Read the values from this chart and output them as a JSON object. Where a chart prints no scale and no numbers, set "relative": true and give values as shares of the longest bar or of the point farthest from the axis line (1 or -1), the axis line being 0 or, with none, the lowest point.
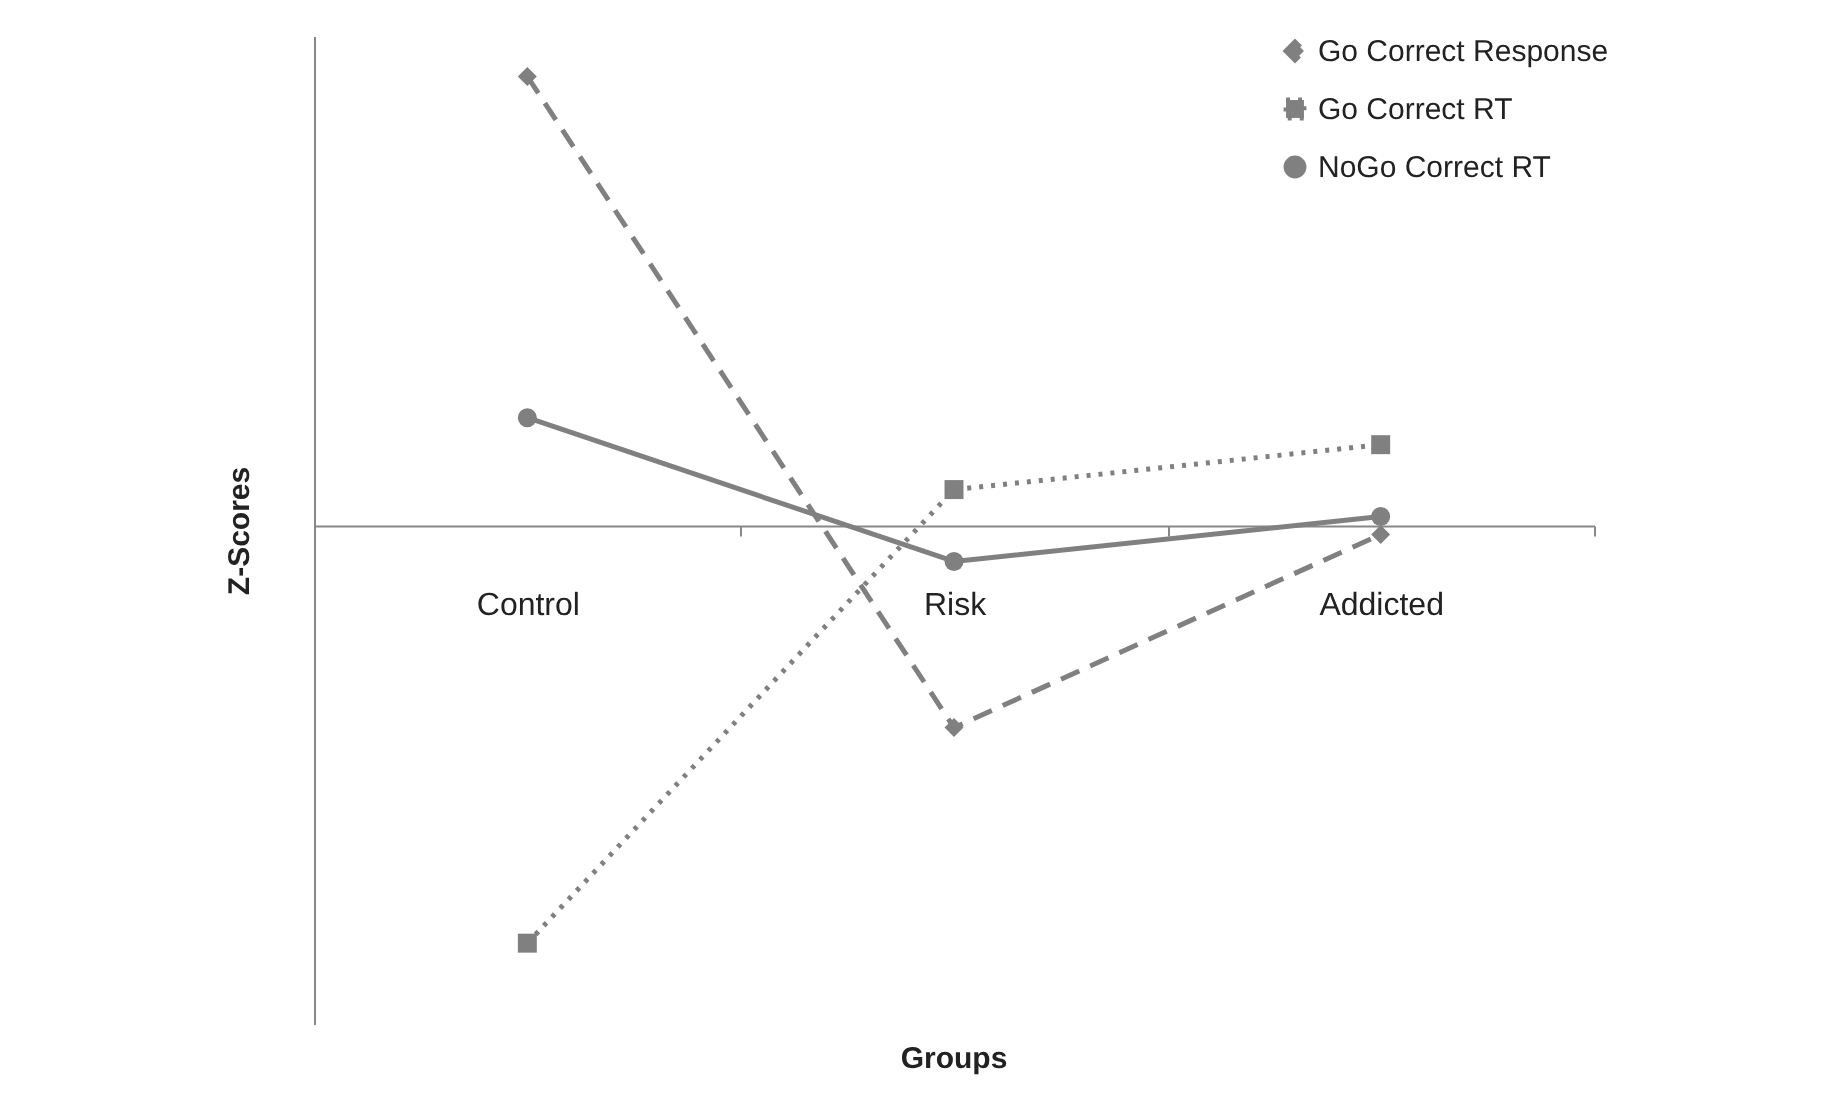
{
  "chart_data": {
    "type": "line",
    "relative": true,
    "xlabel": "Groups",
    "ylabel": "Z-Scores",
    "categories": [
      "Control",
      "Risk",
      "Addicted"
    ],
    "legend": "top right",
    "grid": false,
    "series": [
      {
        "name": "Go Correct Response",
        "color": "#808080",
        "marker": "diamond",
        "line_style": "dashed",
        "values": [
          1,
          -0.45,
          -0.02
        ]
      },
      {
        "name": "Go Correct RT",
        "color": "#808080",
        "marker": "square",
        "line_style": "dotted",
        "values": [
          -0.93,
          0.08,
          0.18
        ]
      },
      {
        "name": "NoGo Correct RT",
        "color": "#808080",
        "marker": "circle",
        "line_style": "solid",
        "values": [
          0.24,
          -0.08,
          0.02
        ]
      }
    ]
  }
}
